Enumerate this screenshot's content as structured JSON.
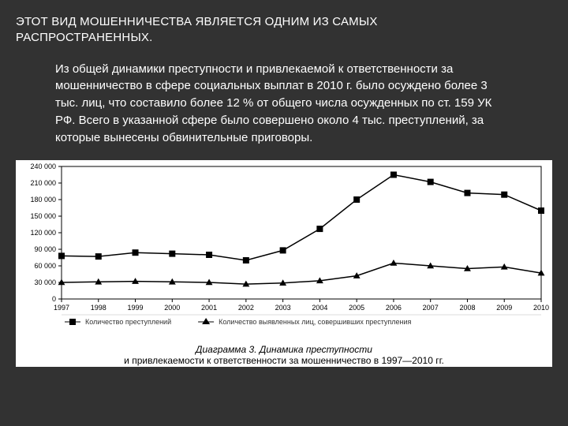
{
  "header": {
    "title_line1": "ЭТОТ ВИД МОШЕННИЧЕСТВА ЯВЛЯЕТСЯ ОДНИМ ИЗ САМЫХ",
    "title_line2": "РАСПРОСТРАНЕННЫХ."
  },
  "body": {
    "paragraph": "Из общей динамики преступности и привлекаемой к ответственности за мошенничество в сфере социальных выплат в 2010 г.  было осуждено более 3 тыс. лиц, что составило более 12 % от общего числа осужденных по ст. 159 УК РФ.  Всего в указанной сфере было совершено около 4 тыс. преступлений, за которые вынесены обвинительные приговоры."
  },
  "chart": {
    "type": "line",
    "background_color": "#ffffff",
    "plot_border_color": "#000000",
    "axis_font_size": 9,
    "categories": [
      "1997",
      "1998",
      "1999",
      "2000",
      "2001",
      "2002",
      "2003",
      "2004",
      "2005",
      "2006",
      "2007",
      "2008",
      "2009",
      "2010"
    ],
    "ylim": [
      0,
      240000
    ],
    "ytick_step": 30000,
    "ytick_labels": [
      "0",
      "30 000",
      "60 000",
      "90 000",
      "120 000",
      "150 000",
      "180 000",
      "210 000",
      "240 000"
    ],
    "series": [
      {
        "name": "Количество преступлений",
        "marker": "square",
        "marker_size": 8,
        "color": "#000000",
        "line_width": 1.5,
        "values": [
          78000,
          77000,
          84000,
          82000,
          80000,
          70000,
          88000,
          127000,
          180000,
          225000,
          212000,
          192000,
          189000,
          160000
        ]
      },
      {
        "name": "Количество выявленных лиц, совершивших преступления",
        "marker": "triangle",
        "marker_size": 8,
        "color": "#000000",
        "line_width": 1.5,
        "values": [
          30000,
          31000,
          32000,
          31000,
          30000,
          27000,
          29000,
          33000,
          42000,
          65000,
          60000,
          55000,
          58000,
          47000
        ]
      }
    ],
    "legend": {
      "position": "bottom",
      "font_size": 9,
      "item1": "Количество преступлений",
      "item2": "Количество выявленных лиц, совершивших преступления"
    },
    "caption_line1": "Диаграмма 3. Динамика преступности",
    "caption_line2": "и привлекаемости к ответственности за мошенничество в 1997—2010 гг."
  }
}
